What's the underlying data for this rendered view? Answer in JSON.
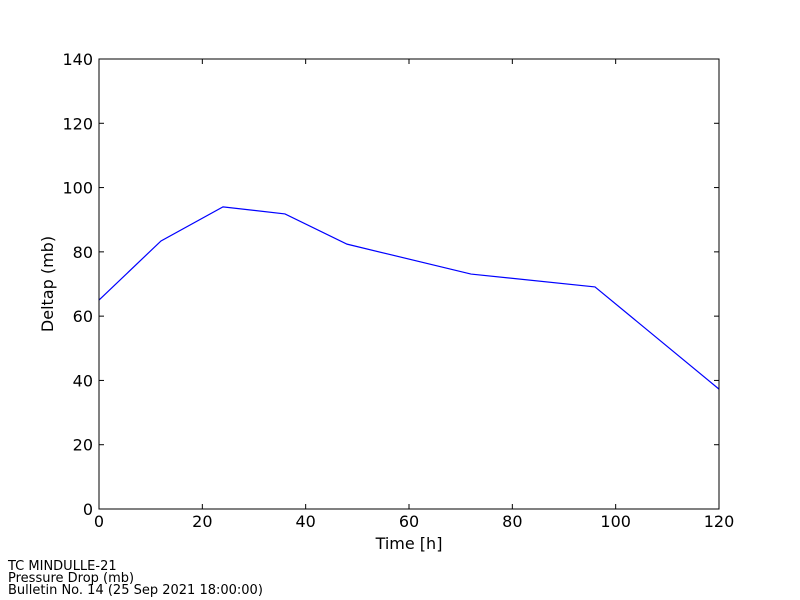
{
  "chart_data": {
    "type": "line",
    "x": [
      0,
      12,
      24,
      36,
      48,
      72,
      96,
      120
    ],
    "series": [
      {
        "name": "Deltap",
        "color": "#0000ff",
        "values": [
          65.0,
          83.4,
          94.0,
          91.8,
          82.4,
          73.1,
          69.1,
          37.3
        ]
      }
    ],
    "xlabel": "Time [h]",
    "ylabel": "Deltap (mb)",
    "xlim": [
      0,
      120
    ],
    "xticks": [
      0,
      20,
      40,
      60,
      80,
      100,
      120
    ],
    "ylim": [
      0,
      140
    ],
    "yticks": [
      0,
      20,
      40,
      60,
      80,
      100,
      120,
      140
    ],
    "annotations": [
      "TC MINDULLE-21",
      "Pressure Drop (mb)",
      "Bulletin No. 14 (25 Sep 2021  18:00:00)"
    ]
  }
}
